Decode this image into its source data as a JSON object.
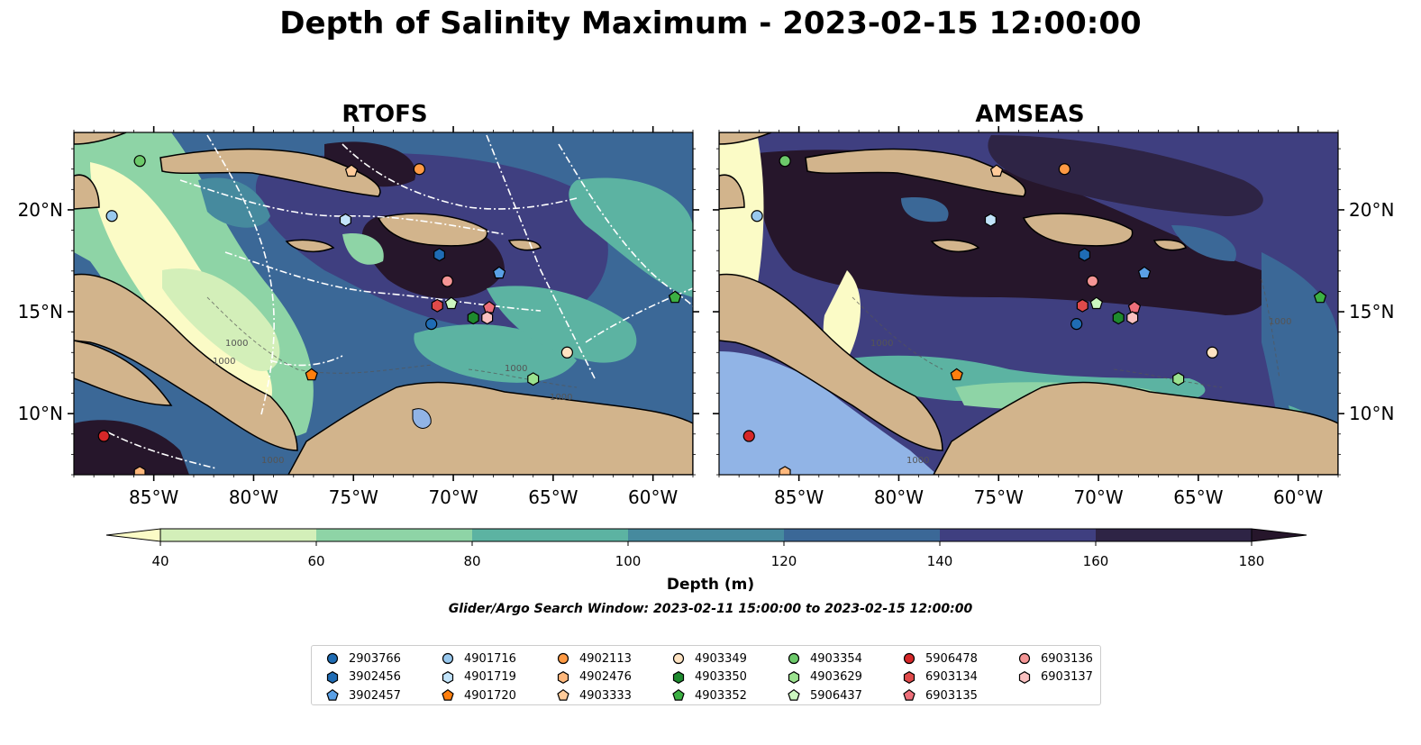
{
  "figure": {
    "title": "Depth of Salinity Maximum - 2023-02-15 12:00:00",
    "colorbar_label": "Depth (m)",
    "search_window": "Glider/Argo Search Window: 2023-02-11 15:00:00 to 2023-02-15 12:00:00"
  },
  "chart_data": [
    {
      "type": "heatmap",
      "title": "RTOFS",
      "x_ticks": [
        "85°W",
        "80°W",
        "75°W",
        "70°W",
        "65°W",
        "60°W"
      ],
      "y_ticks": [
        "10°N",
        "15°N",
        "20°N"
      ],
      "xlim": [
        -89,
        -58
      ],
      "ylim": [
        7,
        23.8
      ],
      "contour_labels": [
        "1000",
        "1000",
        "1000",
        "1000",
        "1000"
      ]
    },
    {
      "type": "heatmap",
      "title": "AMSEAS",
      "x_ticks": [
        "85°W",
        "80°W",
        "75°W",
        "70°W",
        "65°W",
        "60°W"
      ],
      "y_ticks": [
        "10°N",
        "15°N",
        "20°N"
      ],
      "xlim": [
        -89,
        -58
      ],
      "ylim": [
        7,
        23.8
      ],
      "contour_labels": [
        "1000",
        "1000",
        "1000"
      ]
    }
  ],
  "colorbar": {
    "levels": [
      40,
      60,
      80,
      100,
      120,
      140,
      160,
      180
    ],
    "tick_labels": [
      "40",
      "60",
      "80",
      "100",
      "120",
      "140",
      "160",
      "180"
    ],
    "extend": "both",
    "colors": [
      "#fbfbc6",
      "#d3efb9",
      "#8ed4a6",
      "#5cb3a2",
      "#468a9e",
      "#3b6897",
      "#3f3f80",
      "#2e2445",
      "#26162b"
    ]
  },
  "map_colors": {
    "land": "#d2b48c",
    "lake": "#91b4e6",
    "ocean_deep": "#2b1c36",
    "ocean_mid": "#3d3c7e",
    "ocean_shallow": "#fbfbc6"
  },
  "platforms": [
    {
      "id": "2903766",
      "color": "#1f6cb4",
      "marker": "circle",
      "lon": -71.1,
      "lat": 14.4
    },
    {
      "id": "3902456",
      "color": "#1f6cb4",
      "marker": "hexagon",
      "lon": -70.7,
      "lat": 17.8
    },
    {
      "id": "3902457",
      "color": "#5aa0e6",
      "marker": "pentagon",
      "lon": -67.7,
      "lat": 16.9
    },
    {
      "id": "4901716",
      "color": "#98c8ee",
      "marker": "circle",
      "lon": -87.1,
      "lat": 19.7
    },
    {
      "id": "4901719",
      "color": "#c2e4fa",
      "marker": "hexagon",
      "lon": -75.4,
      "lat": 19.5
    },
    {
      "id": "4901720",
      "color": "#ff7f0e",
      "marker": "pentagon",
      "lon": -77.1,
      "lat": 11.9
    },
    {
      "id": "4902113",
      "color": "#ff9a44",
      "marker": "circle",
      "lon": -71.7,
      "lat": 22.0
    },
    {
      "id": "4902476",
      "color": "#ffb87c",
      "marker": "hexagon",
      "lon": -85.7,
      "lat": 7.1
    },
    {
      "id": "4903333",
      "color": "#ffcb9a",
      "marker": "pentagon",
      "lon": -75.1,
      "lat": 21.9
    },
    {
      "id": "4903349",
      "color": "#ffe3c2",
      "marker": "circle",
      "lon": -64.3,
      "lat": 13.0
    },
    {
      "id": "4903350",
      "color": "#1e8a2e",
      "marker": "hexagon",
      "lon": -69.0,
      "lat": 14.7
    },
    {
      "id": "4903352",
      "color": "#3cb043",
      "marker": "pentagon",
      "lon": -58.9,
      "lat": 15.7
    },
    {
      "id": "4903354",
      "color": "#6cc96a",
      "marker": "circle",
      "lon": -85.7,
      "lat": 22.4
    },
    {
      "id": "4903629",
      "color": "#9be28f",
      "marker": "hexagon",
      "lon": -66.0,
      "lat": 11.7
    },
    {
      "id": "5906437",
      "color": "#ccf7c0",
      "marker": "pentagon",
      "lon": -70.1,
      "lat": 15.4
    },
    {
      "id": "5906478",
      "color": "#d62728",
      "marker": "circle",
      "lon": -87.5,
      "lat": 8.9
    },
    {
      "id": "6903134",
      "color": "#e04a4a",
      "marker": "hexagon",
      "lon": -70.8,
      "lat": 15.3
    },
    {
      "id": "6903135",
      "color": "#ee6f7a",
      "marker": "pentagon",
      "lon": -68.2,
      "lat": 15.2
    },
    {
      "id": "6903136",
      "color": "#f49595",
      "marker": "circle",
      "lon": -70.3,
      "lat": 16.5
    },
    {
      "id": "6903137",
      "color": "#f9c0c0",
      "marker": "hexagon",
      "lon": -68.3,
      "lat": 14.7
    }
  ]
}
